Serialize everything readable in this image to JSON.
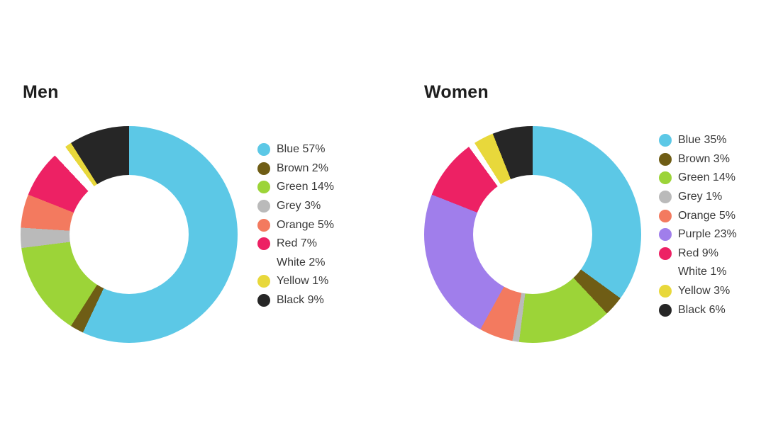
{
  "page": {
    "background_color": "#ffffff",
    "title_color": "#1e1e1e",
    "legend_text_color": "#383838"
  },
  "legend_value_suffix": "%",
  "chart_data": [
    {
      "type": "donut",
      "title": "Men",
      "start_angle_deg": 0,
      "direction": "clockwise",
      "hole_ratio": 0.55,
      "legend_position": "right",
      "grid": false,
      "segments": [
        {
          "label": "Blue",
          "value_pct": 57,
          "color": "#5cc8e6"
        },
        {
          "label": "Brown",
          "value_pct": 2,
          "color": "#6f5d15"
        },
        {
          "label": "Green",
          "value_pct": 14,
          "color": "#9cd438"
        },
        {
          "label": "Grey",
          "value_pct": 3,
          "color": "#bababa"
        },
        {
          "label": "Orange",
          "value_pct": 5,
          "color": "#f37a5f"
        },
        {
          "label": "Red",
          "value_pct": 7,
          "color": "#ed2164"
        },
        {
          "label": "White",
          "value_pct": 2,
          "color": "#ffffff"
        },
        {
          "label": "Yellow",
          "value_pct": 1,
          "color": "#e8d83b"
        },
        {
          "label": "Black",
          "value_pct": 9,
          "color": "#262626"
        }
      ]
    },
    {
      "type": "donut",
      "title": "Women",
      "start_angle_deg": 0,
      "direction": "clockwise",
      "hole_ratio": 0.55,
      "legend_position": "right",
      "grid": false,
      "segments": [
        {
          "label": "Blue",
          "value_pct": 35,
          "color": "#5cc8e6"
        },
        {
          "label": "Brown",
          "value_pct": 3,
          "color": "#6f5d15"
        },
        {
          "label": "Green",
          "value_pct": 14,
          "color": "#9cd438"
        },
        {
          "label": "Grey",
          "value_pct": 1,
          "color": "#bababa"
        },
        {
          "label": "Orange",
          "value_pct": 5,
          "color": "#f37a5f"
        },
        {
          "label": "Purple",
          "value_pct": 23,
          "color": "#a07eeb"
        },
        {
          "label": "Red",
          "value_pct": 9,
          "color": "#ed2164"
        },
        {
          "label": "White",
          "value_pct": 1,
          "color": "#ffffff"
        },
        {
          "label": "Yellow",
          "value_pct": 3,
          "color": "#e8d83b"
        },
        {
          "label": "Black",
          "value_pct": 6,
          "color": "#262626"
        }
      ]
    }
  ]
}
